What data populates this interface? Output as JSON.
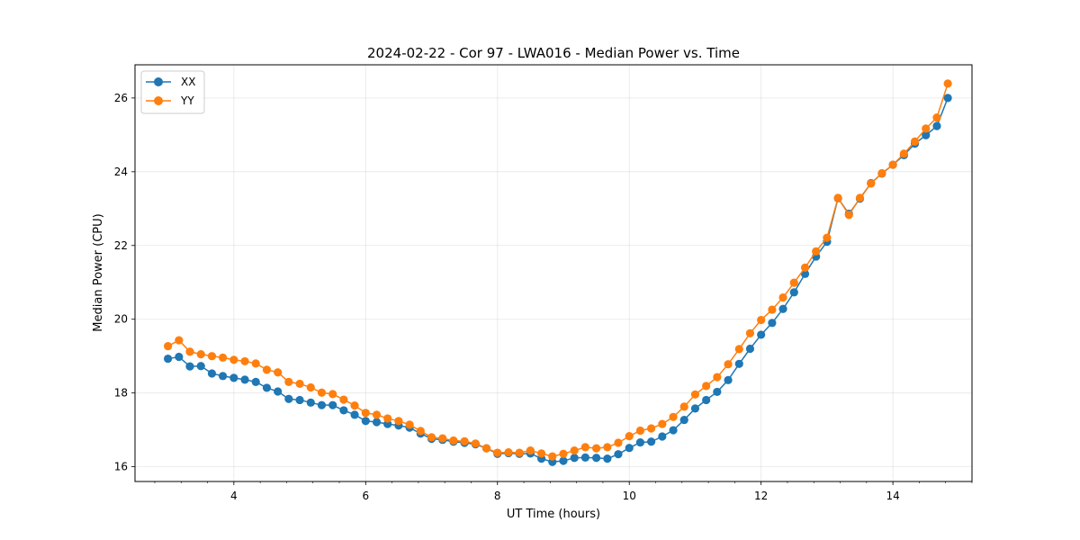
{
  "chart_data": {
    "type": "line",
    "title": "2024-02-22 - Cor 97 - LWA016 - Median Power vs. Time",
    "xlabel": "UT Time (hours)",
    "ylabel": "Median Power (CPU)",
    "xlim": [
      2.5,
      15.2
    ],
    "ylim": [
      15.6,
      26.9
    ],
    "xticks": [
      4,
      6,
      8,
      10,
      12,
      14
    ],
    "yticks": [
      16,
      18,
      20,
      22,
      24,
      26
    ],
    "grid": true,
    "legend_position": "top-left",
    "x": [
      3.0,
      3.167,
      3.333,
      3.5,
      3.667,
      3.833,
      4.0,
      4.167,
      4.333,
      4.5,
      4.667,
      4.833,
      5.0,
      5.167,
      5.333,
      5.5,
      5.667,
      5.833,
      6.0,
      6.167,
      6.333,
      6.5,
      6.667,
      6.833,
      7.0,
      7.167,
      7.333,
      7.5,
      7.667,
      7.833,
      8.0,
      8.167,
      8.333,
      8.5,
      8.667,
      8.833,
      9.0,
      9.167,
      9.333,
      9.5,
      9.667,
      9.833,
      10.0,
      10.167,
      10.333,
      10.5,
      10.667,
      10.833,
      11.0,
      11.167,
      11.333,
      11.5,
      11.667,
      11.833,
      12.0,
      12.167,
      12.333,
      12.5,
      12.667,
      12.833,
      13.0,
      13.167,
      13.333,
      13.5,
      13.667,
      13.833,
      14.0,
      14.167,
      14.333,
      14.5,
      14.667,
      14.833
    ],
    "series": [
      {
        "name": "XX",
        "color": "#1f77b4",
        "values": [
          18.93,
          18.98,
          18.72,
          18.73,
          18.53,
          18.46,
          18.41,
          18.36,
          18.3,
          18.14,
          18.04,
          17.84,
          17.81,
          17.74,
          17.67,
          17.67,
          17.53,
          17.41,
          17.24,
          17.21,
          17.16,
          17.12,
          17.06,
          16.9,
          16.76,
          16.73,
          16.68,
          16.65,
          16.61,
          16.5,
          16.35,
          16.37,
          16.35,
          16.36,
          16.22,
          16.13,
          16.16,
          16.24,
          16.25,
          16.24,
          16.22,
          16.34,
          16.51,
          16.66,
          16.68,
          16.82,
          16.99,
          17.27,
          17.58,
          17.81,
          18.03,
          18.35,
          18.79,
          19.2,
          19.58,
          19.9,
          20.28,
          20.73,
          21.23,
          21.7,
          22.1,
          23.28,
          22.86,
          23.27,
          23.69,
          23.95,
          24.19,
          24.45,
          24.76,
          24.99,
          25.24,
          26.0
        ]
      },
      {
        "name": "YY",
        "color": "#ff7f0e",
        "values": [
          19.27,
          19.43,
          19.12,
          19.05,
          19.0,
          18.96,
          18.9,
          18.86,
          18.8,
          18.63,
          18.56,
          18.3,
          18.25,
          18.15,
          18.01,
          17.97,
          17.82,
          17.66,
          17.46,
          17.41,
          17.31,
          17.24,
          17.14,
          16.97,
          16.8,
          16.77,
          16.71,
          16.69,
          16.63,
          16.5,
          16.38,
          16.39,
          16.38,
          16.44,
          16.36,
          16.28,
          16.35,
          16.44,
          16.53,
          16.5,
          16.53,
          16.65,
          16.83,
          16.98,
          17.04,
          17.16,
          17.35,
          17.63,
          17.96,
          18.19,
          18.43,
          18.78,
          19.19,
          19.62,
          19.98,
          20.26,
          20.59,
          20.99,
          21.4,
          21.84,
          22.21,
          23.29,
          22.83,
          23.29,
          23.68,
          23.96,
          24.19,
          24.49,
          24.82,
          25.17,
          25.47,
          26.39
        ]
      }
    ]
  }
}
